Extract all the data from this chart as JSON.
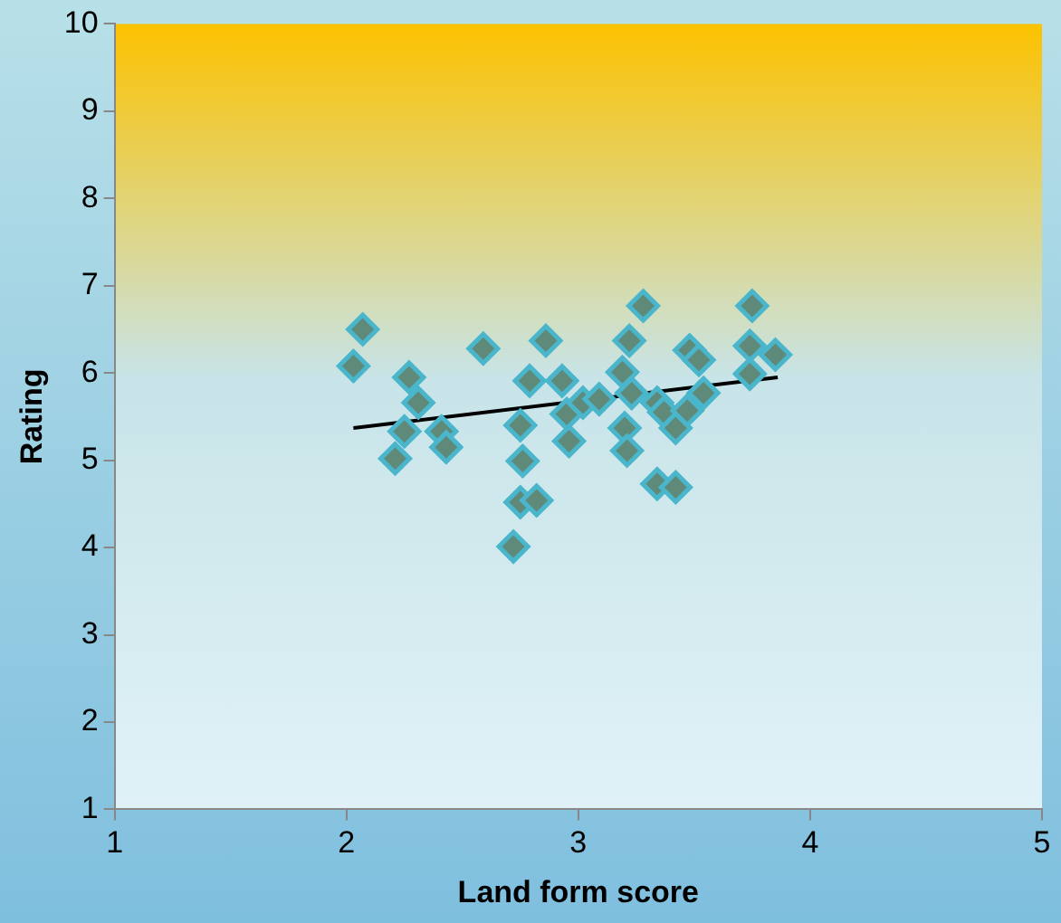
{
  "chart_data": {
    "type": "scatter",
    "xlabel": "Land form score",
    "ylabel": "Rating",
    "xlim": [
      1,
      5
    ],
    "ylim": [
      1,
      10
    ],
    "xticks": [
      1,
      2,
      3,
      4,
      5
    ],
    "yticks": [
      1,
      2,
      3,
      4,
      5,
      6,
      7,
      8,
      9,
      10
    ],
    "grid": false,
    "legend": false,
    "marker": "diamond",
    "series": [
      {
        "color": "#5f8a7a",
        "x": [
          2.03,
          2.07,
          2.27,
          2.31,
          2.25,
          2.21,
          2.41,
          2.43,
          2.59,
          2.72,
          2.75,
          2.82,
          2.76,
          2.75,
          2.79,
          2.86,
          2.93,
          2.95,
          2.96,
          3.02,
          3.09,
          3.19,
          3.22,
          3.2,
          3.21,
          3.28,
          3.23,
          3.34,
          3.37,
          3.34,
          3.42,
          3.42,
          3.47,
          3.48,
          3.52,
          3.54,
          3.75,
          3.74,
          3.74,
          3.85
        ],
        "values": [
          6.08,
          6.5,
          5.95,
          5.66,
          5.33,
          5.02,
          5.33,
          5.15,
          6.28,
          4.01,
          4.52,
          4.54,
          4.99,
          5.4,
          5.91,
          6.37,
          5.91,
          5.53,
          5.22,
          5.66,
          5.7,
          6.01,
          6.37,
          5.37,
          5.11,
          6.77,
          5.77,
          5.66,
          5.55,
          4.73,
          4.69,
          5.37,
          5.57,
          6.26,
          6.15,
          5.77,
          6.77,
          6.31,
          5.99,
          6.21
        ]
      },
      {
        "type": "line",
        "color": "#000000",
        "marker": "none",
        "x": [
          2.03,
          3.86
        ],
        "values": [
          5.37,
          5.95
        ]
      }
    ]
  }
}
